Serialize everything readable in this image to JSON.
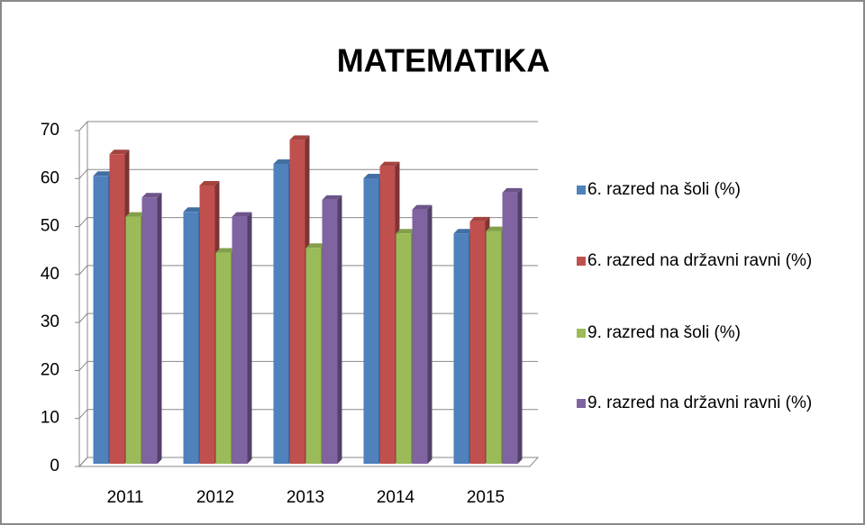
{
  "chart_data": {
    "type": "bar3d",
    "title": "MATEMATIKA",
    "categories": [
      "2011",
      "2012",
      "2013",
      "2014",
      "2015"
    ],
    "series": [
      {
        "name": "6. razred na šoli (%)",
        "color": "#4f81bd",
        "values": [
          60,
          52.5,
          62.5,
          59.5,
          48
        ]
      },
      {
        "name": "6. razred na državni ravni (%)",
        "color": "#c0504d",
        "values": [
          64.5,
          58,
          67.5,
          62,
          50.5
        ]
      },
      {
        "name": "9. razred na šoli (%)",
        "color": "#9bbb59",
        "values": [
          51.5,
          44,
          45,
          48,
          48.5
        ]
      },
      {
        "name": "9. razred na državni ravni (%)",
        "color": "#8064a2",
        "values": [
          55.5,
          51.5,
          55,
          53,
          56.5
        ]
      }
    ],
    "ylim": [
      0,
      70
    ],
    "yticks": [
      0,
      10,
      20,
      30,
      40,
      50,
      60,
      70
    ],
    "grid": true,
    "legend": "right"
  }
}
